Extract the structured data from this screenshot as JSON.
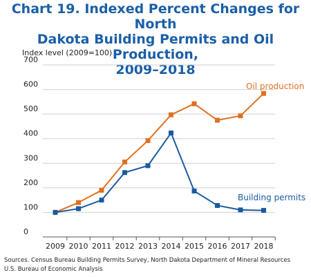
{
  "title_lines": [
    "Chart 19. Indexed Percent Changes for North",
    "Dakota Building Permits and Oil Production,",
    "2009–2018"
  ],
  "source_lines": [
    "Sources. Census Bureau Building Permits Survey, North Dakota Department of Mineral Resources",
    "U.S. Bureau of Economic Analysis"
  ],
  "colors": {
    "title": "#1a5fa8",
    "oil": "#e07020",
    "permits": "#1a5aa0",
    "grid": "#cfcfcf"
  },
  "chart_data": {
    "type": "line",
    "title": "Chart 19. Indexed Percent Changes for North Dakota Building Permits and Oil Production, 2009–2018",
    "ylabel": "Index level (2009=100)",
    "xlabel": "",
    "categories": [
      "2009",
      "2010",
      "2011",
      "2012",
      "2013",
      "2014",
      "2015",
      "2016",
      "2017",
      "2018"
    ],
    "yticks": [
      0,
      100,
      200,
      300,
      400,
      500,
      600,
      700
    ],
    "ylim": [
      0,
      700
    ],
    "grid": true,
    "series": [
      {
        "name": "Oil production",
        "marker": "square",
        "values": [
          100,
          140,
          190,
          305,
          392,
          497,
          542,
          475,
          493,
          584
        ]
      },
      {
        "name": "Building permits",
        "marker": "square",
        "values": [
          100,
          115,
          150,
          262,
          290,
          423,
          187,
          128,
          110,
          108
        ]
      }
    ]
  }
}
